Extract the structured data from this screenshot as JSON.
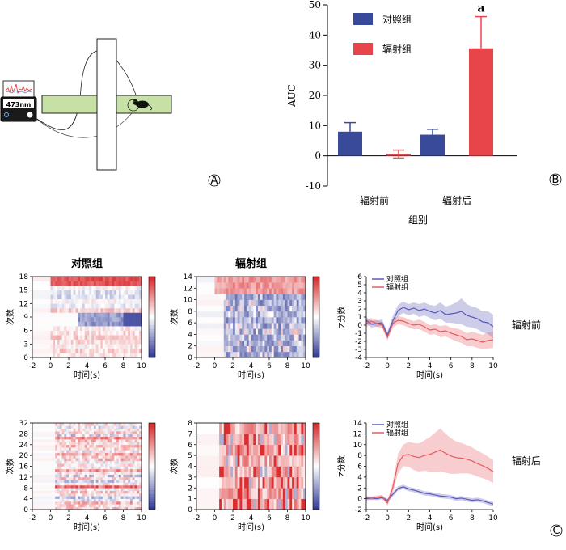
{
  "panel_letters": {
    "A": "A",
    "B": "B",
    "C": "C"
  },
  "device": {
    "label": "473nm"
  },
  "chart_data": [
    {
      "id": "auc_bar",
      "type": "bar",
      "title": "",
      "xlabel": "组别",
      "ylabel": "AUC",
      "ylim": [
        -10,
        50
      ],
      "yticks": [
        -10,
        0,
        10,
        20,
        30,
        40,
        50
      ],
      "categories": [
        "辐射前",
        "辐射后"
      ],
      "series": [
        {
          "name": "对照组",
          "color": "#3a4a9a",
          "values": [
            8,
            7
          ],
          "errors": [
            3,
            1.8
          ]
        },
        {
          "name": "辐射组",
          "color": "#e8454a",
          "values": [
            0.6,
            35.6
          ],
          "errors": [
            1.3,
            10.5
          ]
        }
      ],
      "annotations": [
        {
          "text": "a",
          "category": "辐射后",
          "series": "辐射组"
        }
      ],
      "legend": "top-left",
      "grid": false
    },
    {
      "id": "heat_ctrl_pre",
      "type": "heatmap",
      "title": "对照组",
      "xlabel": "时间(s)",
      "ylabel": "次数",
      "xlim": [
        -2,
        10
      ],
      "xticks": [
        -2,
        0,
        2,
        4,
        6,
        8,
        10
      ],
      "ylim": [
        0,
        18
      ],
      "yticks": [
        0,
        3,
        6,
        9,
        12,
        15,
        18
      ],
      "rows": 18
    },
    {
      "id": "heat_rad_pre",
      "type": "heatmap",
      "title": "辐射组",
      "xlabel": "时间(s)",
      "ylabel": "次数",
      "xlim": [
        -2,
        10
      ],
      "xticks": [
        -2,
        0,
        2,
        4,
        6,
        8,
        10
      ],
      "ylim": [
        0,
        14
      ],
      "yticks": [
        0,
        2,
        4,
        6,
        8,
        10,
        12,
        14
      ],
      "rows": 14
    },
    {
      "id": "heat_ctrl_post",
      "type": "heatmap",
      "title": "",
      "xlabel": "时间(s)",
      "ylabel": "次数",
      "xlim": [
        -2,
        10
      ],
      "xticks": [
        -2,
        0,
        2,
        4,
        6,
        8,
        10
      ],
      "ylim": [
        0,
        32
      ],
      "yticks": [
        0,
        4,
        8,
        12,
        16,
        20,
        24,
        28,
        32
      ],
      "rows": 32
    },
    {
      "id": "heat_rad_post",
      "type": "heatmap",
      "title": "",
      "xlabel": "时间(s)",
      "ylabel": "次数",
      "xlim": [
        -2,
        10
      ],
      "xticks": [
        -2,
        0,
        2,
        4,
        6,
        8,
        10
      ],
      "ylim": [
        0,
        8
      ],
      "yticks": [
        0,
        1,
        2,
        3,
        4,
        5,
        6,
        7,
        8
      ],
      "rows": 8
    },
    {
      "id": "z_pre",
      "type": "line",
      "title": "",
      "xlabel": "时间(s)",
      "ylabel": "Z分数",
      "xlim": [
        -2,
        10
      ],
      "xticks": [
        -2,
        0,
        2,
        4,
        6,
        8,
        10
      ],
      "ylim": [
        -4,
        6
      ],
      "yticks": [
        -4,
        -3,
        -2,
        -1,
        0,
        1,
        2,
        3,
        4,
        5,
        6
      ],
      "x": [
        -2,
        -1.5,
        -1,
        -0.5,
        0,
        0.5,
        1,
        1.5,
        2,
        2.5,
        3,
        3.5,
        4,
        4.5,
        5,
        5.5,
        6,
        6.5,
        7,
        7.5,
        8,
        8.5,
        9,
        9.5,
        10
      ],
      "series": [
        {
          "name": "对照组",
          "color": "#5a5ab8",
          "values": [
            0.6,
            0.1,
            0.2,
            0.3,
            -1.2,
            0.5,
            1.8,
            2.2,
            1.9,
            2.1,
            1.8,
            2.0,
            1.7,
            1.5,
            1.8,
            1.3,
            1.4,
            1.5,
            1.7,
            1.2,
            1.0,
            0.8,
            0.4,
            0.3,
            -0.2
          ],
          "errors": [
            0.4,
            0.4,
            0.4,
            0.4,
            0.4,
            0.6,
            0.7,
            0.7,
            0.7,
            0.7,
            0.8,
            0.8,
            0.8,
            0.9,
            1.0,
            1.0,
            1.1,
            1.3,
            1.6,
            1.4,
            1.3,
            1.3,
            1.3,
            1.4,
            1.5
          ]
        },
        {
          "name": "辐射组",
          "color": "#e85a5f",
          "values": [
            0.2,
            0.5,
            0.2,
            0.0,
            -1.5,
            0.2,
            0.6,
            0.5,
            0.2,
            0.0,
            0.1,
            -0.2,
            -0.6,
            -0.5,
            -0.8,
            -0.7,
            -1.0,
            -1.2,
            -1.4,
            -1.8,
            -1.7,
            -1.9,
            -2.1,
            -1.9,
            -1.8
          ],
          "errors": [
            0.4,
            0.4,
            0.4,
            0.4,
            0.4,
            0.5,
            0.5,
            0.5,
            0.5,
            0.5,
            0.6,
            0.6,
            0.6,
            0.6,
            0.7,
            0.7,
            0.7,
            0.8,
            0.8,
            0.8,
            0.9,
            0.9,
            0.9,
            1.0,
            1.0
          ]
        }
      ],
      "legend": "top-left"
    },
    {
      "id": "z_post",
      "type": "line",
      "title": "",
      "xlabel": "时间(s)",
      "ylabel": "Z分数",
      "xlim": [
        -2,
        10
      ],
      "xticks": [
        -2,
        0,
        2,
        4,
        6,
        8,
        10
      ],
      "ylim": [
        -2,
        14
      ],
      "yticks": [
        -2,
        0,
        2,
        4,
        6,
        8,
        10,
        12,
        14
      ],
      "x": [
        -2,
        -1.5,
        -1,
        -0.5,
        0,
        0.5,
        1,
        1.5,
        2,
        2.5,
        3,
        3.5,
        4,
        4.5,
        5,
        5.5,
        6,
        6.5,
        7,
        7.5,
        8,
        8.5,
        9,
        9.5,
        10
      ],
      "series": [
        {
          "name": "对照组",
          "color": "#5a5ab8",
          "values": [
            0.0,
            0.1,
            0.0,
            0.2,
            -0.3,
            0.8,
            1.9,
            2.2,
            1.8,
            1.6,
            1.3,
            1.0,
            0.9,
            0.7,
            0.5,
            0.4,
            0.3,
            0.0,
            0.1,
            -0.1,
            -0.3,
            -0.2,
            -0.4,
            -0.7,
            -1.0
          ],
          "errors": [
            0.3,
            0.3,
            0.3,
            0.3,
            0.3,
            0.4,
            0.4,
            0.4,
            0.4,
            0.4,
            0.4,
            0.4,
            0.4,
            0.4,
            0.4,
            0.4,
            0.4,
            0.4,
            0.4,
            0.4,
            0.4,
            0.4,
            0.4,
            0.4,
            0.4
          ]
        },
        {
          "name": "辐射组",
          "color": "#e85a5f",
          "values": [
            0.2,
            0.1,
            0.3,
            0.4,
            -0.8,
            2.0,
            6.5,
            8.0,
            8.2,
            7.8,
            7.6,
            8.0,
            8.2,
            8.6,
            9.0,
            8.4,
            7.9,
            7.6,
            7.5,
            7.3,
            7.0,
            6.5,
            6.1,
            5.6,
            5.0
          ],
          "errors": [
            0.3,
            0.3,
            0.3,
            0.3,
            0.5,
            1.0,
            1.8,
            2.0,
            2.3,
            2.5,
            2.6,
            2.8,
            3.2,
            3.6,
            4.0,
            3.6,
            3.3,
            3.0,
            2.8,
            2.6,
            2.5,
            2.4,
            2.3,
            2.2,
            2.1
          ]
        }
      ],
      "legend": "top-left"
    }
  ],
  "row_labels": {
    "pre": "辐射前",
    "post": "辐射后"
  },
  "colorbar": {
    "top_color": "#dd2a2a",
    "bottom_color": "#2c3690"
  }
}
